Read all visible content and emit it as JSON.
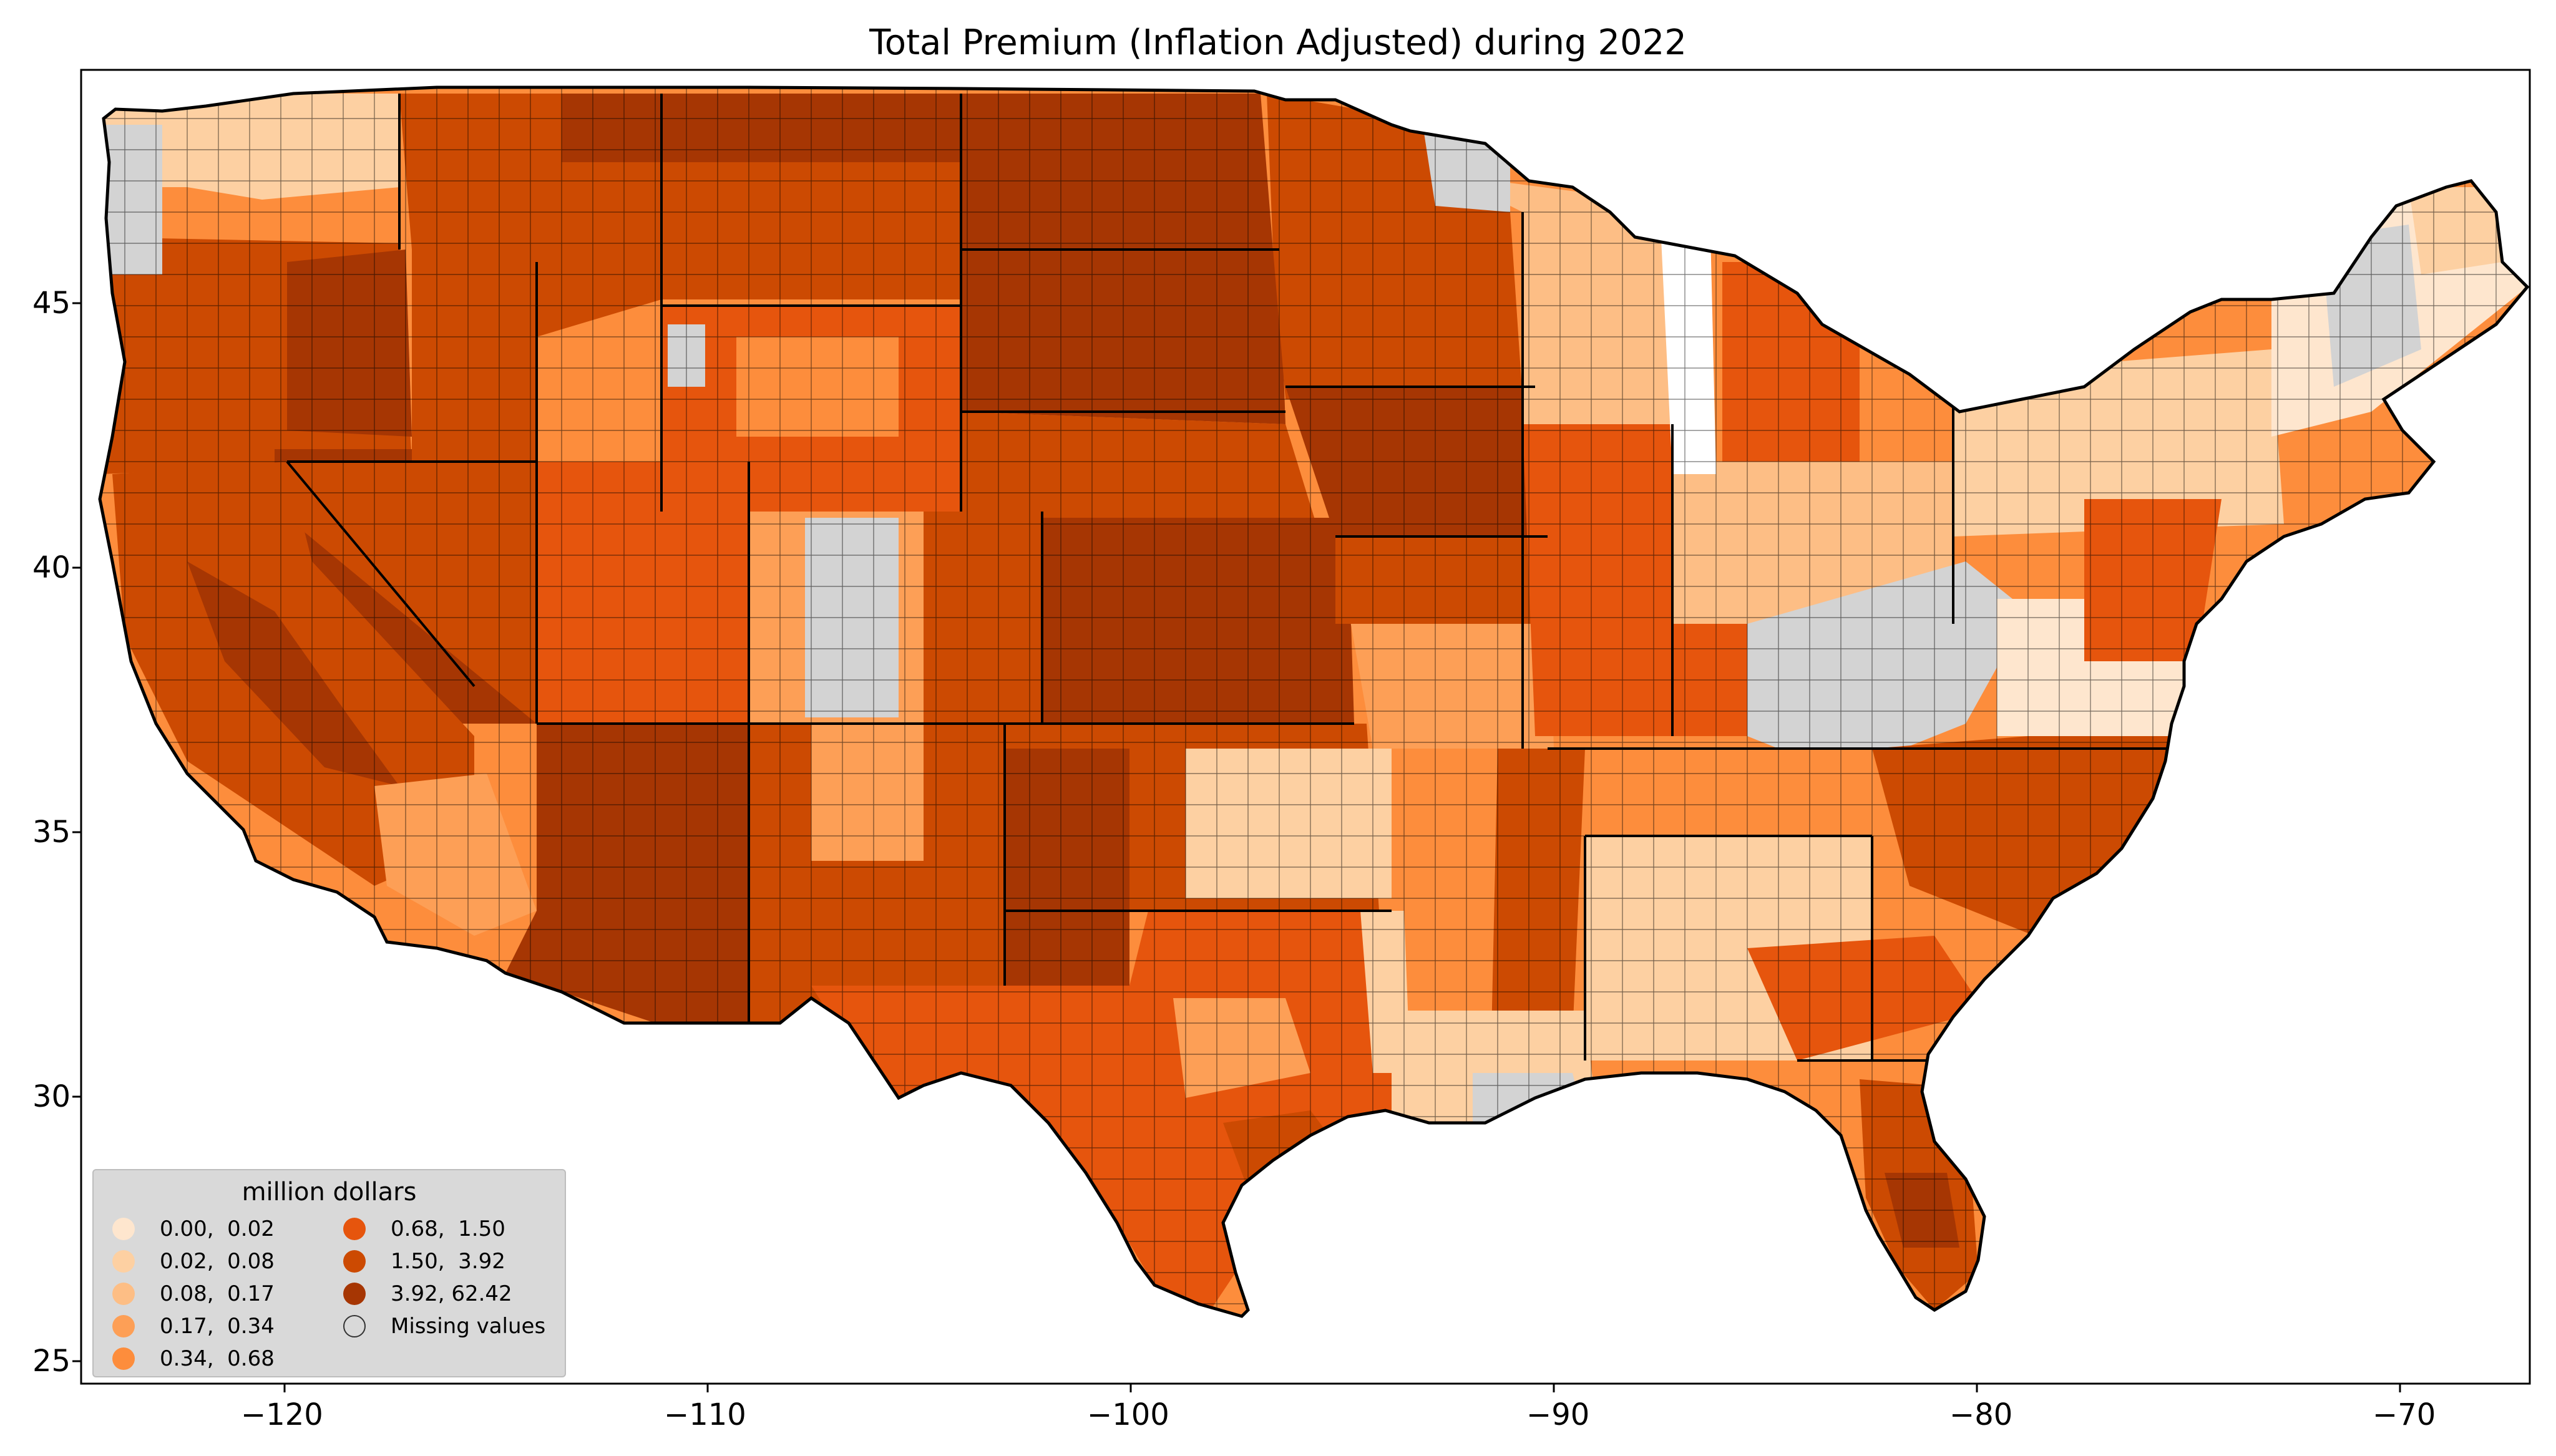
{
  "title": "Total  Premium  (Inflation Adjusted) during 2022",
  "axes": {
    "x_ticks": [
      "−120",
      "−110",
      "−100",
      "−90",
      "−80",
      "−70"
    ],
    "y_ticks": [
      "45",
      "40",
      "35",
      "30",
      "25"
    ]
  },
  "legend": {
    "title": "million dollars",
    "items": [
      {
        "label": "0.00,  0.02",
        "color": "#fee6ce"
      },
      {
        "label": "0.02,  0.08",
        "color": "#fdd0a2"
      },
      {
        "label": "0.08,  0.17",
        "color": "#fdbe85"
      },
      {
        "label": "0.17,  0.34",
        "color": "#fd9f56"
      },
      {
        "label": "0.34,  0.68",
        "color": "#fd8d3c"
      },
      {
        "label": "0.68,  1.50",
        "color": "#e6550d"
      },
      {
        "label": "1.50,  3.92",
        "color": "#cc4a02"
      },
      {
        "label": "3.92, 62.42",
        "color": "#a63603"
      },
      {
        "label": "Missing values",
        "color": "#d9d9d9"
      }
    ]
  },
  "colors": {
    "c0": "#fee6ce",
    "c1": "#fdd0a2",
    "c2": "#fdbe85",
    "c3": "#fd9f56",
    "c4": "#fd8d3c",
    "c5": "#e6550d",
    "c6": "#cc4a02",
    "c7": "#a63603",
    "missing": "#d3d3d3"
  },
  "chart_data": {
    "type": "choropleth",
    "xlim": [
      -124.8,
      -66.9
    ],
    "ylim": [
      24.5,
      49.4
    ],
    "classes": [
      {
        "range": [
          0.0,
          0.02
        ]
      },
      {
        "range": [
          0.02,
          0.08
        ]
      },
      {
        "range": [
          0.08,
          0.17
        ]
      },
      {
        "range": [
          0.17,
          0.34
        ]
      },
      {
        "range": [
          0.34,
          0.68
        ]
      },
      {
        "range": [
          0.68,
          1.5
        ]
      },
      {
        "range": [
          1.5,
          3.92
        ]
      },
      {
        "range": [
          3.92,
          62.42
        ]
      }
    ]
  }
}
